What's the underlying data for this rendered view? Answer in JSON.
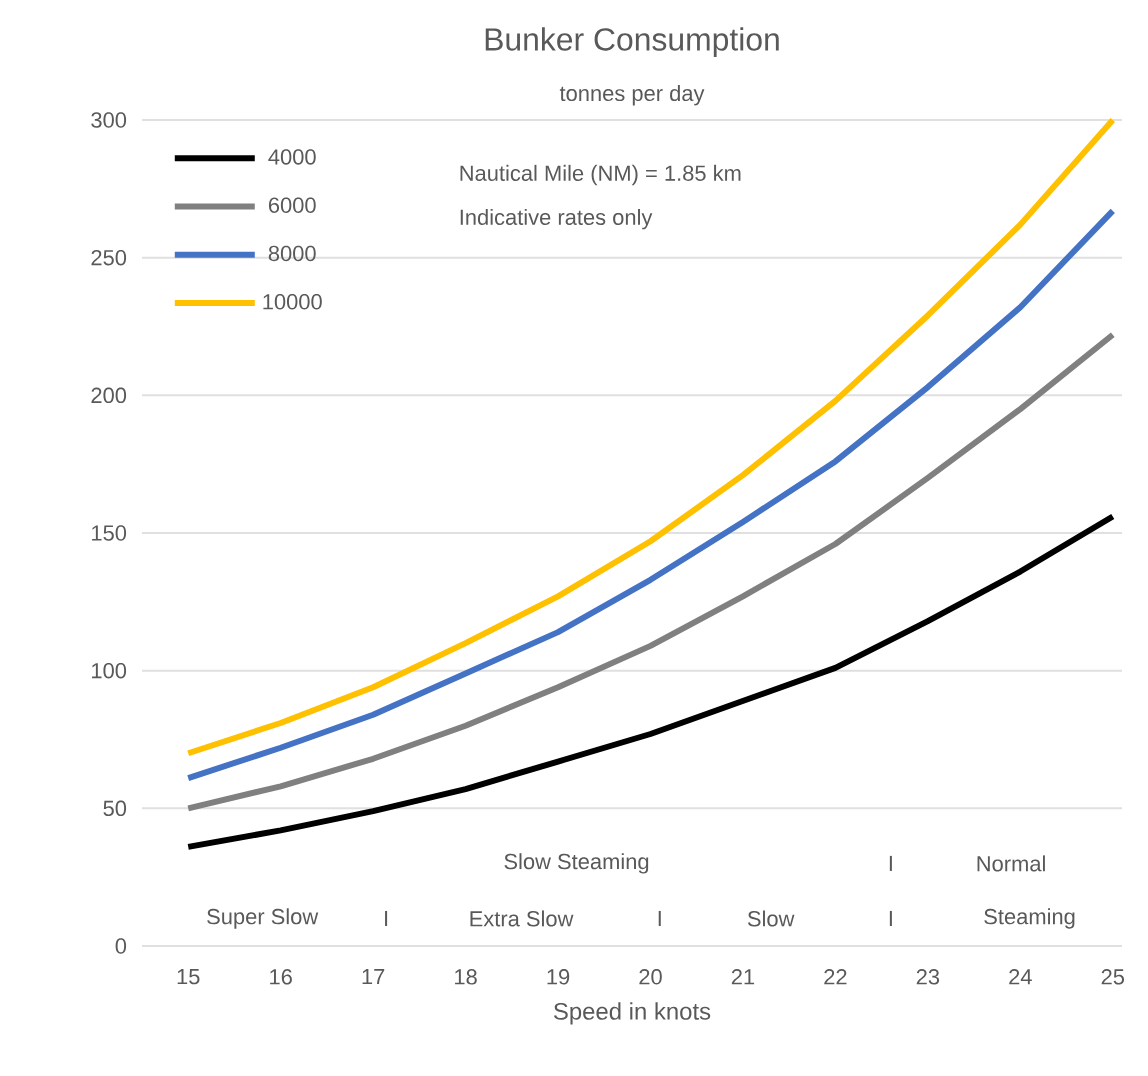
{
  "chart_data": {
    "type": "line",
    "title": "Bunker Consumption",
    "subtitle": "tonnes per day",
    "xlabel": "Speed in knots",
    "categories": [
      "15",
      "16",
      "17",
      "18",
      "19",
      "20",
      "21",
      "22",
      "23",
      "24",
      "25"
    ],
    "series": [
      {
        "name": "4000",
        "color": "#000000",
        "values": [
          36,
          42,
          49,
          57,
          67,
          77,
          89,
          101,
          118,
          136,
          156
        ]
      },
      {
        "name": "6000",
        "color": "#808080",
        "values": [
          50,
          58,
          68,
          80,
          94,
          109,
          127,
          146,
          170,
          195,
          222
        ]
      },
      {
        "name": "8000",
        "color": "#4472c4",
        "values": [
          61,
          72,
          84,
          99,
          114,
          133,
          154,
          176,
          203,
          232,
          267
        ]
      },
      {
        "name": "10000",
        "color": "#ffc000",
        "values": [
          70,
          81,
          94,
          110,
          127,
          147,
          171,
          198,
          229,
          262,
          300
        ]
      }
    ],
    "ylim": [
      0,
      300
    ],
    "yticks": [
      0,
      50,
      100,
      150,
      200,
      250,
      300
    ],
    "grid": "y",
    "legend": "top left",
    "marker": "none",
    "line_style": "solid",
    "annotations": [
      "Nautical Mile (NM) = 1.85 km",
      "Indicative rates only",
      "Slow Steaming",
      "Super Slow",
      "I",
      "Extra Slow",
      "I",
      "Slow",
      "I",
      "I",
      "Normal",
      "Steaming"
    ]
  }
}
